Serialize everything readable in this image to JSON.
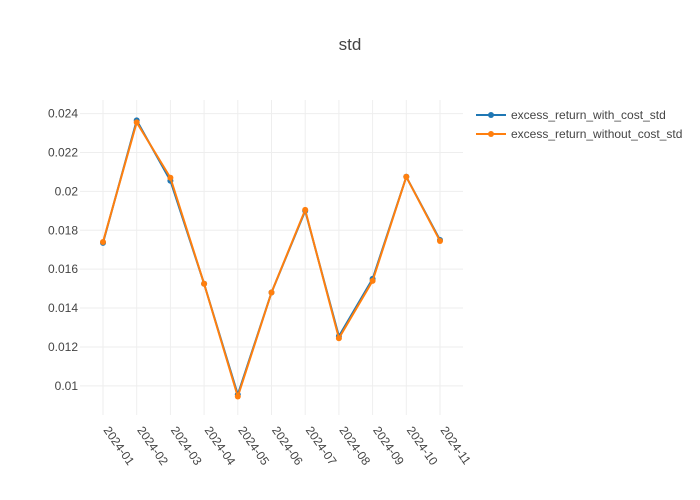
{
  "chart_data": {
    "type": "line",
    "title": "std",
    "xlabel": "",
    "ylabel": "",
    "x": [
      "2024-01",
      "2024-02",
      "2024-03",
      "2024-04",
      "2024-05",
      "2024-06",
      "2024-07",
      "2024-08",
      "2024-09",
      "2024-10",
      "2024-11"
    ],
    "ylim": [
      0.0085,
      0.0247
    ],
    "yticks": [
      0.01,
      0.012,
      0.014,
      0.016,
      0.018,
      0.02,
      0.022,
      0.024
    ],
    "ytick_labels": [
      "0.01",
      "0.012",
      "0.014",
      "0.016",
      "0.018",
      "0.02",
      "0.022",
      "0.024"
    ],
    "grid": true,
    "legend_position": "top-right",
    "series": [
      {
        "name": "excess_return_with_cost_std",
        "color": "#1f77b4",
        "values": [
          0.01735,
          0.02365,
          0.02055,
          0.01525,
          0.00955,
          0.0148,
          0.019,
          0.01255,
          0.0155,
          0.02075,
          0.0175
        ]
      },
      {
        "name": "excess_return_without_cost_std",
        "color": "#ff7f0e",
        "values": [
          0.0174,
          0.02355,
          0.0207,
          0.01525,
          0.00945,
          0.0148,
          0.01905,
          0.01245,
          0.0154,
          0.02075,
          0.01745
        ]
      }
    ]
  }
}
